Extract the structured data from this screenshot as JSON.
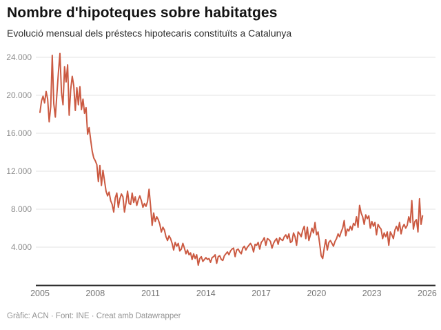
{
  "header": {
    "title": "Nombre d'hipoteques sobre habitatges",
    "subtitle": "Evolució mensual dels préstecs hipotecaris constituïts a Catalunya"
  },
  "footer": {
    "credit": "Gràfic: ACN · Font: INE · Creat amb Datawrapper"
  },
  "chart_data": {
    "type": "line",
    "title": "Nombre d'hipoteques sobre habitatges",
    "subtitle": "Evolució mensual dels préstecs hipotecaris constituïts a Catalunya",
    "xlabel": "",
    "ylabel": "",
    "frequency": "monthly",
    "x_start": "2005-01",
    "x_end": "2025-10",
    "ylim": [
      0,
      25000
    ],
    "grid": "horizontal",
    "legend": "none",
    "line_color": "#cb5a42",
    "axis_color": "#2e2e2e",
    "grid_color": "#e3e3e3",
    "y_ticks": [
      {
        "value": 4000,
        "label": "4.000"
      },
      {
        "value": 8000,
        "label": "8.000"
      },
      {
        "value": 12000,
        "label": "12.000"
      },
      {
        "value": 16000,
        "label": "16.000"
      },
      {
        "value": 20000,
        "label": "20.000"
      },
      {
        "value": 24000,
        "label": "24.000"
      }
    ],
    "x_ticks": [
      {
        "year": 2005,
        "label": "2005"
      },
      {
        "year": 2008,
        "label": "2008"
      },
      {
        "year": 2011,
        "label": "2011"
      },
      {
        "year": 2014,
        "label": "2014"
      },
      {
        "year": 2017,
        "label": "2017"
      },
      {
        "year": 2020,
        "label": "2020"
      },
      {
        "year": 2023,
        "label": "2023"
      },
      {
        "year": 2026,
        "label": "2026"
      }
    ],
    "series": [
      {
        "name": "Hipoteques constituïdes sobre habitatges (Catalunya)",
        "start": "2005-01",
        "values": [
          18200,
          19400,
          19900,
          19200,
          20400,
          19600,
          17200,
          18800,
          24200,
          19100,
          17700,
          20100,
          22400,
          24400,
          20300,
          19000,
          23000,
          21400,
          23200,
          17900,
          20600,
          22000,
          21000,
          18400,
          20800,
          19000,
          20900,
          18500,
          19600,
          18100,
          18700,
          15900,
          16600,
          15300,
          14100,
          13400,
          13100,
          12700,
          10900,
          12600,
          10500,
          12100,
          11000,
          9900,
          9400,
          9800,
          8900,
          8500,
          7700,
          9200,
          9700,
          8200,
          9100,
          9600,
          9300,
          7700,
          8700,
          9900,
          8600,
          8500,
          9700,
          8700,
          9300,
          8400,
          9000,
          9400,
          8900,
          8200,
          8600,
          8300,
          8800,
          10100,
          8300,
          6300,
          7600,
          6700,
          7200,
          6900,
          6400,
          5600,
          6100,
          5800,
          5100,
          4700,
          5200,
          4900,
          4400,
          3700,
          4500,
          4100,
          4400,
          3600,
          3800,
          4400,
          3900,
          3300,
          3700,
          3200,
          3400,
          2700,
          3300,
          2800,
          3200,
          2100,
          2800,
          3000,
          2500,
          2700,
          2900,
          2700,
          2800,
          2400,
          2900,
          3000,
          3200,
          2300,
          3000,
          3100,
          2700,
          2600,
          3100,
          3300,
          3500,
          3200,
          3600,
          3800,
          3900,
          3000,
          3700,
          3800,
          3500,
          3300,
          3900,
          4100,
          3700,
          4000,
          4200,
          4400,
          4100,
          3500,
          4300,
          4200,
          4500,
          3800,
          4500,
          4700,
          5000,
          4200,
          4900,
          4800,
          4600,
          3900,
          4400,
          4700,
          4900,
          4300,
          5000,
          4800,
          4700,
          5100,
          5300,
          4900,
          5400,
          4500,
          4600,
          5500,
          5100,
          4200,
          5600,
          5400,
          5100,
          5800,
          6200,
          4900,
          6100,
          4700,
          5300,
          6000,
          5500,
          6600,
          5300,
          5600,
          4400,
          3100,
          2800,
          3900,
          4800,
          3700,
          4500,
          4700,
          4400,
          4100,
          4600,
          4900,
          5400,
          5100,
          5600,
          6000,
          6800,
          5200,
          5900,
          5700,
          6200,
          5800,
          6500,
          6300,
          7200,
          6100,
          8400,
          7600,
          7200,
          6400,
          7400,
          7000,
          7300,
          6000,
          6700,
          6200,
          6600,
          5300,
          6400,
          6100,
          5900,
          4900,
          5500,
          5100,
          5600,
          4200,
          5600,
          5300,
          4900,
          5800,
          6200,
          5700,
          6600,
          5400,
          6100,
          6400,
          6000,
          6300,
          7200,
          6600,
          8900,
          5900,
          6700,
          6900,
          5600,
          9100,
          6400,
          7300
        ]
      }
    ]
  }
}
